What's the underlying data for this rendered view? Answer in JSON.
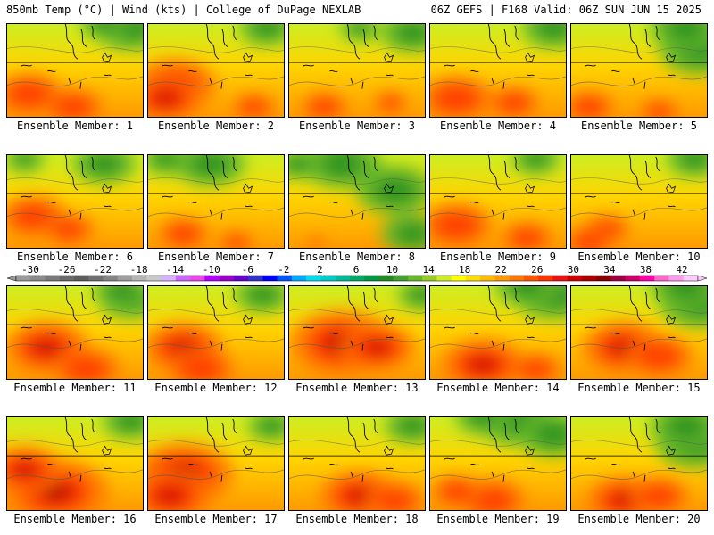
{
  "header": {
    "left": "850mb Temp (°C) | Wind (kts) | College of DuPage NEXLAB",
    "right": "06Z GEFS | F168 Valid: 06Z SUN JUN 15 2025"
  },
  "label_prefix": "Ensemble Member: ",
  "colorbar": {
    "ticks": [
      -30,
      -26,
      -22,
      -18,
      -14,
      -10,
      -6,
      -2,
      2,
      6,
      10,
      14,
      18,
      22,
      26,
      30,
      34,
      38,
      42
    ],
    "colors": [
      "#9a9a9a",
      "#8a8a8a",
      "#7a7a7a",
      "#6a6a6a",
      "#5d5d5d",
      "#707070",
      "#858585",
      "#9e9e9e",
      "#b5b5b5",
      "#c9c9c9",
      "#d9b2ff",
      "#cc66ff",
      "#ee44ee",
      "#b300ff",
      "#9b00cc",
      "#6600cc",
      "#3333cc",
      "#0000ff",
      "#0055ff",
      "#00aaff",
      "#00ddee",
      "#00cccc",
      "#00bb99",
      "#00aa66",
      "#009944",
      "#228b22",
      "#44a030",
      "#66b82a",
      "#99cc22",
      "#ccee22",
      "#ffff00",
      "#ffdd00",
      "#ffbb00",
      "#ff9900",
      "#ff7700",
      "#ff5500",
      "#ff3300",
      "#ee1111",
      "#cc0000",
      "#aa0000",
      "#880000",
      "#a00044",
      "#cc0066",
      "#ff00aa",
      "#ff66cc",
      "#ff99ee",
      "#ffccff"
    ]
  },
  "members": [
    {
      "id": 1,
      "label": "1",
      "warm": [
        [
          25,
          80,
          0.8
        ],
        [
          75,
          95,
          0.7
        ]
      ],
      "green": [
        [
          140,
          5,
          0.9
        ],
        [
          110,
          0,
          0.6
        ]
      ]
    },
    {
      "id": 2,
      "label": "2",
      "warm": [
        [
          30,
          70,
          1.0
        ],
        [
          20,
          85,
          0.9
        ],
        [
          120,
          95,
          0.5
        ]
      ],
      "green": [
        [
          135,
          5,
          0.7
        ]
      ]
    },
    {
      "id": 3,
      "label": "3",
      "warm": [
        [
          40,
          95,
          0.55
        ],
        [
          115,
          90,
          0.4
        ]
      ],
      "green": [
        [
          140,
          10,
          0.8
        ],
        [
          80,
          5,
          0.5
        ]
      ]
    },
    {
      "id": 4,
      "label": "4",
      "warm": [
        [
          30,
          85,
          0.85
        ],
        [
          95,
          90,
          0.6
        ]
      ],
      "green": [
        [
          140,
          5,
          0.8
        ]
      ]
    },
    {
      "id": 5,
      "label": "5",
      "warm": [
        [
          20,
          95,
          0.6
        ],
        [
          100,
          100,
          0.45
        ]
      ],
      "green": [
        [
          145,
          30,
          1.0
        ],
        [
          130,
          5,
          0.9
        ]
      ]
    },
    {
      "id": 6,
      "label": "6",
      "warm": [
        [
          30,
          70,
          0.8
        ],
        [
          70,
          85,
          0.6
        ]
      ],
      "green": [
        [
          110,
          10,
          0.8
        ],
        [
          20,
          5,
          0.5
        ]
      ]
    },
    {
      "id": 7,
      "label": "7",
      "warm": [
        [
          40,
          90,
          0.6
        ],
        [
          100,
          100,
          0.4
        ]
      ],
      "green": [
        [
          70,
          10,
          0.9
        ],
        [
          20,
          5,
          0.6
        ]
      ]
    },
    {
      "id": 8,
      "label": "8",
      "warm": [
        [
          30,
          100,
          0.2
        ]
      ],
      "green": [
        [
          120,
          40,
          1.0
        ],
        [
          60,
          10,
          1.0
        ],
        [
          140,
          90,
          0.8
        ],
        [
          10,
          10,
          0.6
        ]
      ]
    },
    {
      "id": 9,
      "label": "9",
      "warm": [
        [
          30,
          80,
          0.85
        ],
        [
          110,
          95,
          0.6
        ]
      ],
      "green": [
        [
          120,
          5,
          0.6
        ]
      ]
    },
    {
      "id": 10,
      "label": "10",
      "warm": [
        [
          40,
          85,
          0.55
        ],
        [
          20,
          100,
          0.6
        ]
      ],
      "green": [
        [
          140,
          5,
          0.7
        ]
      ]
    },
    {
      "id": 11,
      "label": "11",
      "warm": [
        [
          45,
          70,
          1.0
        ],
        [
          90,
          95,
          0.8
        ]
      ],
      "green": [
        [
          140,
          15,
          0.8
        ],
        [
          130,
          5,
          0.7
        ]
      ]
    },
    {
      "id": 12,
      "label": "12",
      "warm": [
        [
          40,
          70,
          0.95
        ],
        [
          60,
          95,
          0.8
        ]
      ],
      "green": [
        [
          130,
          10,
          0.7
        ]
      ]
    },
    {
      "id": 13,
      "label": "13",
      "warm": [
        [
          60,
          65,
          1.25
        ],
        [
          100,
          70,
          0.9
        ]
      ],
      "green": [
        [
          150,
          10,
          0.6
        ]
      ]
    },
    {
      "id": 14,
      "label": "14",
      "warm": [
        [
          60,
          90,
          1.0
        ],
        [
          120,
          95,
          0.6
        ]
      ],
      "green": [
        [
          140,
          10,
          1.0
        ],
        [
          110,
          0,
          0.8
        ]
      ]
    },
    {
      "id": 15,
      "label": "15",
      "warm": [
        [
          60,
          70,
          1.0
        ],
        [
          100,
          80,
          0.8
        ]
      ],
      "green": [
        [
          145,
          20,
          1.0
        ],
        [
          130,
          0,
          0.9
        ]
      ]
    },
    {
      "id": 16,
      "label": "16",
      "warm": [
        [
          55,
          85,
          1.25
        ],
        [
          20,
          60,
          0.9
        ]
      ],
      "green": [
        [
          140,
          5,
          0.7
        ]
      ]
    },
    {
      "id": 17,
      "label": "17",
      "warm": [
        [
          40,
          65,
          1.2
        ],
        [
          25,
          90,
          1.0
        ]
      ],
      "green": [
        [
          140,
          10,
          0.6
        ]
      ]
    },
    {
      "id": 18,
      "label": "18",
      "warm": [
        [
          80,
          90,
          0.95
        ],
        [
          120,
          95,
          0.7
        ]
      ],
      "green": [
        [
          140,
          10,
          0.7
        ]
      ]
    },
    {
      "id": 19,
      "label": "19",
      "warm": [
        [
          70,
          95,
          0.8
        ],
        [
          30,
          85,
          0.6
        ]
      ],
      "green": [
        [
          100,
          5,
          1.0
        ],
        [
          140,
          20,
          0.9
        ],
        [
          60,
          0,
          0.7
        ]
      ]
    },
    {
      "id": 20,
      "label": "20",
      "warm": [
        [
          60,
          95,
          0.9
        ],
        [
          100,
          90,
          0.7
        ]
      ],
      "green": [
        [
          140,
          30,
          1.0
        ],
        [
          130,
          10,
          0.9
        ]
      ]
    }
  ]
}
